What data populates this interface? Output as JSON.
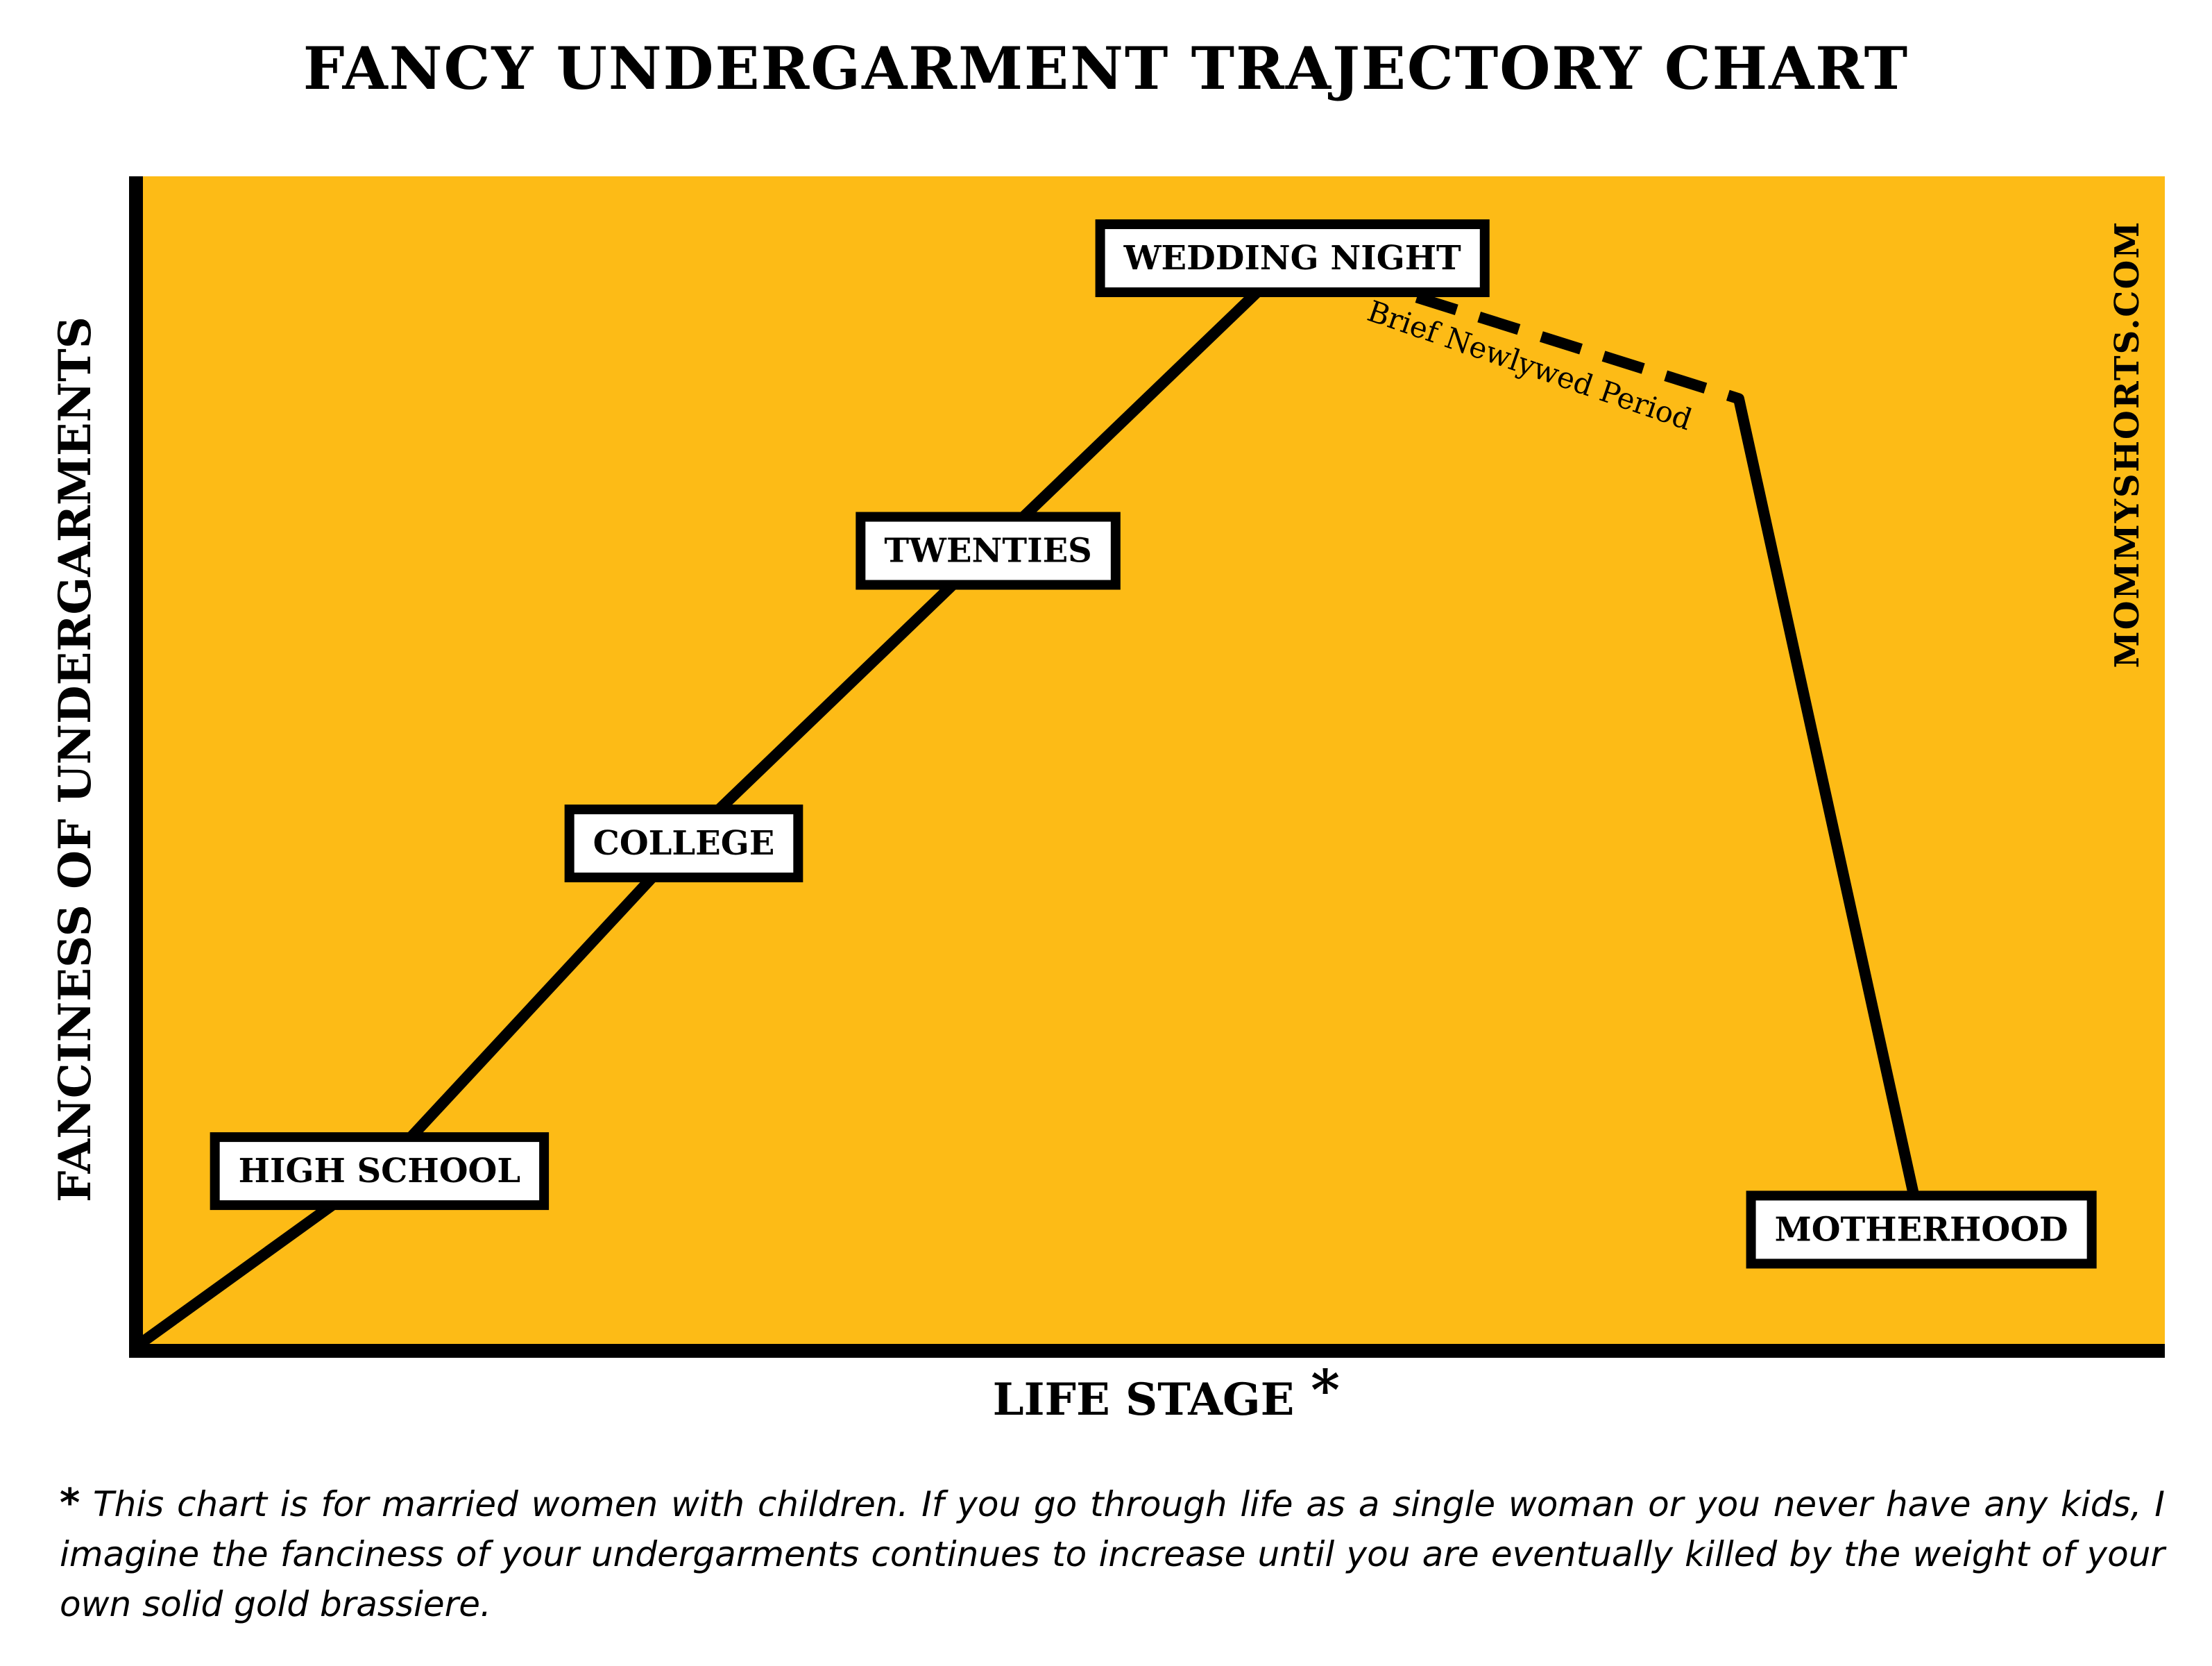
{
  "chart_data": {
    "type": "line",
    "title": "FANCY UNDERGARMENT TRAJECTORY CHART",
    "xlabel": "LIFE STAGE",
    "xlabel_marker": "*",
    "ylabel": "FANCINESS OF UNDERGARMENTS",
    "background_color": "#FDBB16",
    "line_color": "#000000",
    "xlim": [
      0,
      10
    ],
    "ylim": [
      0,
      10
    ],
    "grid": false,
    "points": [
      {
        "x": 0.0,
        "y": 0.0,
        "style": "solid"
      },
      {
        "x": 1.2,
        "y": 1.5,
        "style": "solid"
      },
      {
        "x": 2.7,
        "y": 4.3,
        "style": "solid"
      },
      {
        "x": 4.2,
        "y": 6.8,
        "style": "solid"
      },
      {
        "x": 5.7,
        "y": 9.3,
        "style": "dashed"
      },
      {
        "x": 7.9,
        "y": 8.1,
        "style": "solid"
      },
      {
        "x": 8.8,
        "y": 1.0,
        "style": "solid"
      }
    ],
    "stages": [
      {
        "label": "HIGH SCHOOL",
        "x": 1.2,
        "y": 1.5
      },
      {
        "label": "COLLEGE",
        "x": 2.7,
        "y": 4.3
      },
      {
        "label": "TWENTIES",
        "x": 4.2,
        "y": 6.8
      },
      {
        "label": "WEDDING NIGHT",
        "x": 5.7,
        "y": 9.3
      },
      {
        "label": "MOTHERHOOD",
        "x": 8.8,
        "y": 1.0
      }
    ],
    "annotations": [
      {
        "text": "Brief Newlywed Period"
      }
    ]
  },
  "watermark": "MOMMYSHORTS.COM",
  "footnote": {
    "marker": "*",
    "text": " This chart is for married women with children.  If you go through life as a single woman or you never have any kids, I imagine the fanciness of your undergarments continues to increase until you are eventually killed by the weight of your own solid gold brassiere."
  }
}
